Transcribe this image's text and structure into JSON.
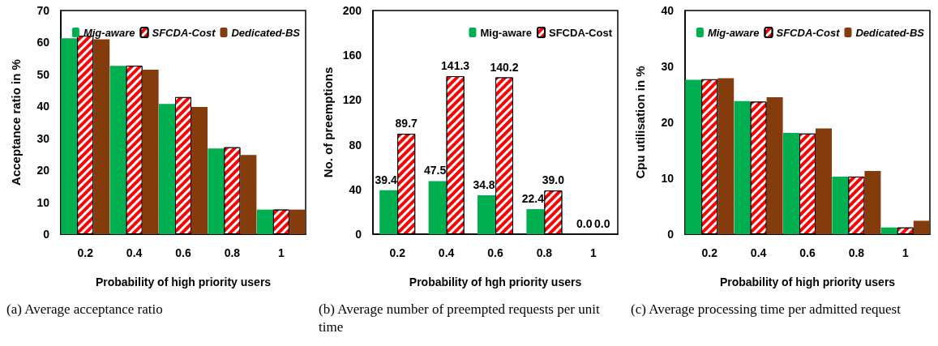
{
  "chart_data": [
    {
      "type": "bar",
      "xlabel": "Probability of high priority users",
      "ylabel": "Acceptance ratio in %",
      "categories": [
        "0.2",
        "0.4",
        "0.6",
        "0.8",
        "1"
      ],
      "ylim": [
        0,
        70
      ],
      "yticks": [
        0,
        10,
        20,
        30,
        40,
        50,
        60,
        70
      ],
      "grid": false,
      "legend": "top right",
      "annotations": [
        "(a) Average acceptance ratio"
      ],
      "series": [
        {
          "name": "Mig-aware",
          "color": "#00b050",
          "values": [
            61.3,
            52.7,
            40.8,
            26.8,
            7.7
          ]
        },
        {
          "name": "SFCDA-Cost",
          "color": "#ff0000",
          "values": [
            62.1,
            52.7,
            42.9,
            27.2,
            7.7
          ]
        },
        {
          "name": "Dedicated-BS",
          "color": "#843c0c",
          "values": [
            61.0,
            51.5,
            39.8,
            24.8,
            7.7
          ]
        }
      ]
    },
    {
      "type": "bar",
      "xlabel": "Probability of hgh priority users",
      "ylabel": "No. of preemptions",
      "categories": [
        "0.2",
        "0.4",
        "0.6",
        "0.8",
        "1"
      ],
      "ylim": [
        0,
        200
      ],
      "yticks": [
        0,
        40,
        80,
        120,
        160,
        200
      ],
      "grid": false,
      "legend": "top right",
      "annotations": [
        "(b) Average number of preempted requests per unit time"
      ],
      "series": [
        {
          "name": "Mig-aware",
          "color": "#00b050",
          "values": [
            39.4,
            47.5,
            34.8,
            22.4,
            0.0
          ],
          "value_labels": [
            "39.4",
            "47.5",
            "34.8",
            "22.4",
            "0.0"
          ]
        },
        {
          "name": "SFCDA-Cost",
          "color": "#ff0000",
          "values": [
            89.7,
            141.3,
            140.2,
            39.0,
            0.0
          ],
          "value_labels": [
            "89.7",
            "141.3",
            "140.2",
            "39.0",
            "0.0"
          ]
        }
      ]
    },
    {
      "type": "bar",
      "xlabel": "Probability of high priority users",
      "ylabel": "Cpu utilisation in %",
      "categories": [
        "0.2",
        "0.4",
        "0.6",
        "0.8",
        "1"
      ],
      "ylim": [
        0,
        40
      ],
      "yticks": [
        0,
        10,
        20,
        30,
        40
      ],
      "grid": false,
      "legend": "top right",
      "annotations": [
        "(c) Average processing time per admitted request"
      ],
      "series": [
        {
          "name": "Mig-aware",
          "color": "#00b050",
          "values": [
            27.6,
            23.8,
            18.1,
            10.3,
            1.2
          ]
        },
        {
          "name": "SFCDA-Cost",
          "color": "#ff0000",
          "values": [
            27.7,
            23.7,
            18.0,
            10.3,
            1.2
          ]
        },
        {
          "name": "Dedicated-BS",
          "color": "#843c0c",
          "values": [
            27.9,
            24.5,
            18.9,
            11.3,
            2.4
          ]
        }
      ]
    }
  ]
}
